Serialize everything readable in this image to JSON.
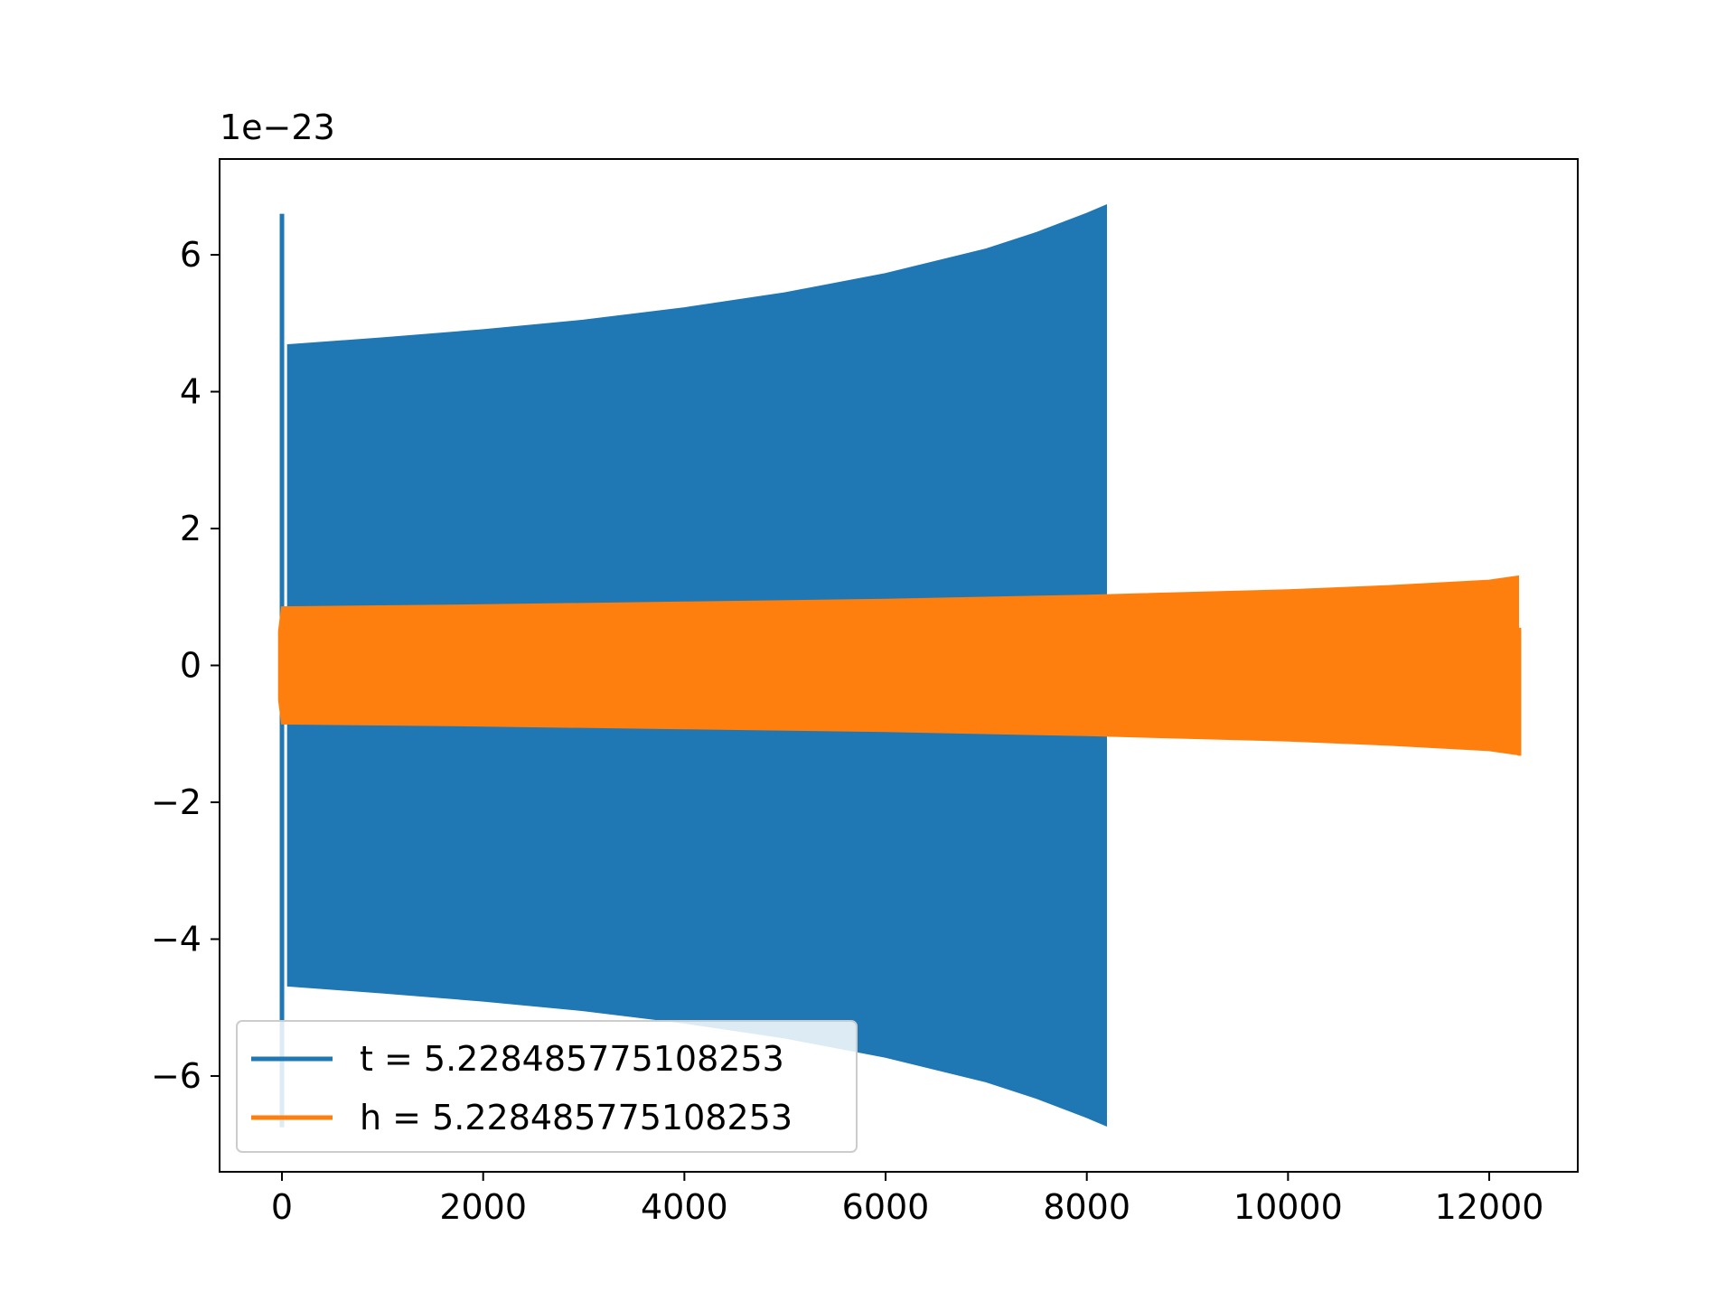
{
  "chart_data": {
    "type": "area",
    "title": "",
    "xlabel": "",
    "ylabel": "",
    "y_offset_label": "1e−23",
    "xlim": [
      -620,
      12880
    ],
    "ylim": [
      -7.4,
      7.4
    ],
    "xticks": [
      0,
      2000,
      4000,
      6000,
      8000,
      10000,
      12000
    ],
    "xtick_labels": [
      "0",
      "2000",
      "4000",
      "6000",
      "8000",
      "10000",
      "12000"
    ],
    "yticks": [
      -6,
      -4,
      -2,
      0,
      2,
      4,
      6
    ],
    "ytick_labels": [
      "−6",
      "−4",
      "−2",
      "0",
      "2",
      "4",
      "6"
    ],
    "grid": false,
    "legend_position": "lower-left",
    "series": [
      {
        "name": "t = 5.228485775108253",
        "color": "#1f77b4",
        "envelope_x": [
          60,
          1000,
          2000,
          3000,
          4000,
          5000,
          6000,
          7000,
          7500,
          8000,
          8191
        ],
        "envelope_upper": [
          4.68,
          4.78,
          4.9,
          5.04,
          5.22,
          5.44,
          5.72,
          6.08,
          6.32,
          6.6,
          6.72
        ],
        "spike": {
          "x": 0,
          "upper": 6.6,
          "lower": -6.75
        }
      },
      {
        "name": "h = 5.228485775108253",
        "color": "#ff7f0e",
        "envelope_x": [
          -30,
          0,
          2000,
          4000,
          6000,
          8000,
          10000,
          11000,
          12000,
          12287
        ],
        "envelope_upper": [
          0.5,
          0.85,
          0.88,
          0.92,
          0.96,
          1.02,
          1.1,
          1.16,
          1.24,
          1.3
        ],
        "tail": {
          "x": 12300,
          "upper": 0.55,
          "lower": -1.32
        }
      }
    ]
  }
}
